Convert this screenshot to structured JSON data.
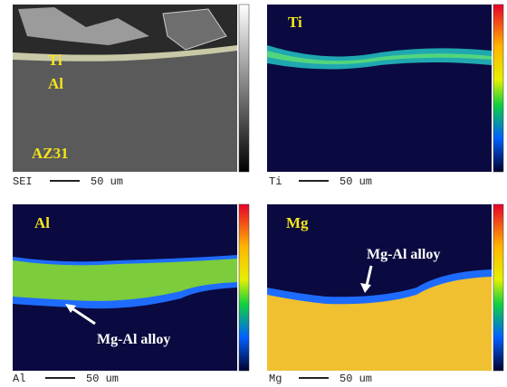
{
  "panels": [
    {
      "labels": [
        "Ti",
        "Al",
        "AZ31"
      ],
      "caption": {
        "element": "SEI",
        "scale": "50 um"
      }
    },
    {
      "labels": [
        "Ti"
      ],
      "caption": {
        "element": "Ti",
        "scale": "50 um"
      }
    },
    {
      "labels": [
        "Al",
        "Mg-Al alloy"
      ],
      "caption": {
        "element": "Al",
        "scale": "50 um"
      }
    },
    {
      "labels": [
        "Mg",
        "Mg-Al alloy"
      ],
      "caption": {
        "element": "Mg",
        "scale": "50 um"
      }
    }
  ]
}
